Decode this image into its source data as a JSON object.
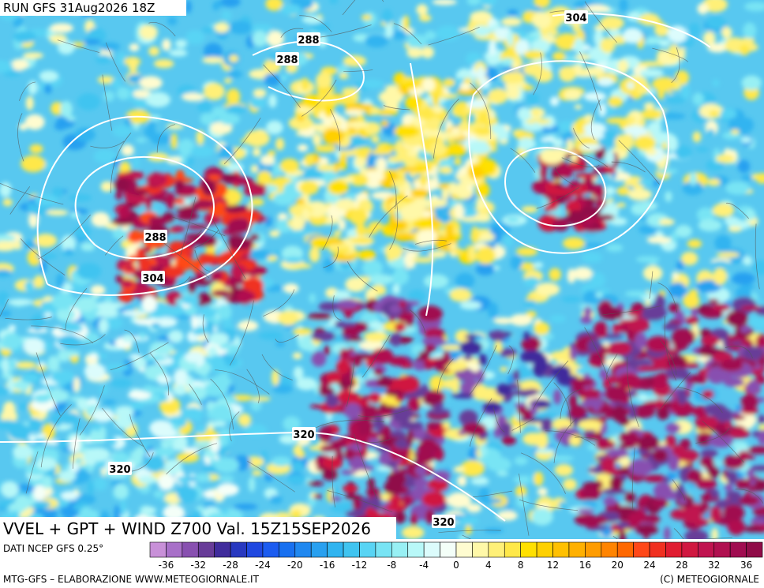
{
  "header": {
    "run": "RUN GFS 31Aug2026 18Z"
  },
  "map": {
    "title": "VVEL + GPT + WIND Z700 Val. 15Z15SEP2026",
    "contour_labels": [
      288,
      288,
      304,
      288,
      304,
      320,
      320,
      320
    ]
  },
  "colorbar": {
    "source": "DATI NCEP GFS 0.25°",
    "colors": [
      "#c890d8",
      "#a870c8",
      "#8850b0",
      "#683c98",
      "#402c9c",
      "#2838c0",
      "#2048e0",
      "#1c5cf0",
      "#1870f0",
      "#2088f0",
      "#28a0f0",
      "#30b4f0",
      "#40c4f0",
      "#58d4f4",
      "#78e4f4",
      "#98f0f4",
      "#b8f8f8",
      "#dcfcfc",
      "#f4fff8",
      "#fffcd0",
      "#fff8a8",
      "#fff078",
      "#ffe848",
      "#ffe000",
      "#ffd000",
      "#ffc000",
      "#ffb000",
      "#ff9c00",
      "#ff8400",
      "#ff6800",
      "#ff4818",
      "#f03020",
      "#e01c30",
      "#d01840",
      "#c01450",
      "#b01050",
      "#a00c50",
      "#900c48"
    ],
    "ticks": [
      -36,
      -32,
      -28,
      -24,
      -20,
      -16,
      -12,
      -8,
      -4,
      0,
      4,
      8,
      12,
      16,
      20,
      24,
      28,
      32,
      36
    ]
  },
  "footer": {
    "left": "MTG-GFS – ELABORAZIONE WWW.METEOGIORNALE.IT",
    "right": "(C) METEOGIORNALE"
  }
}
